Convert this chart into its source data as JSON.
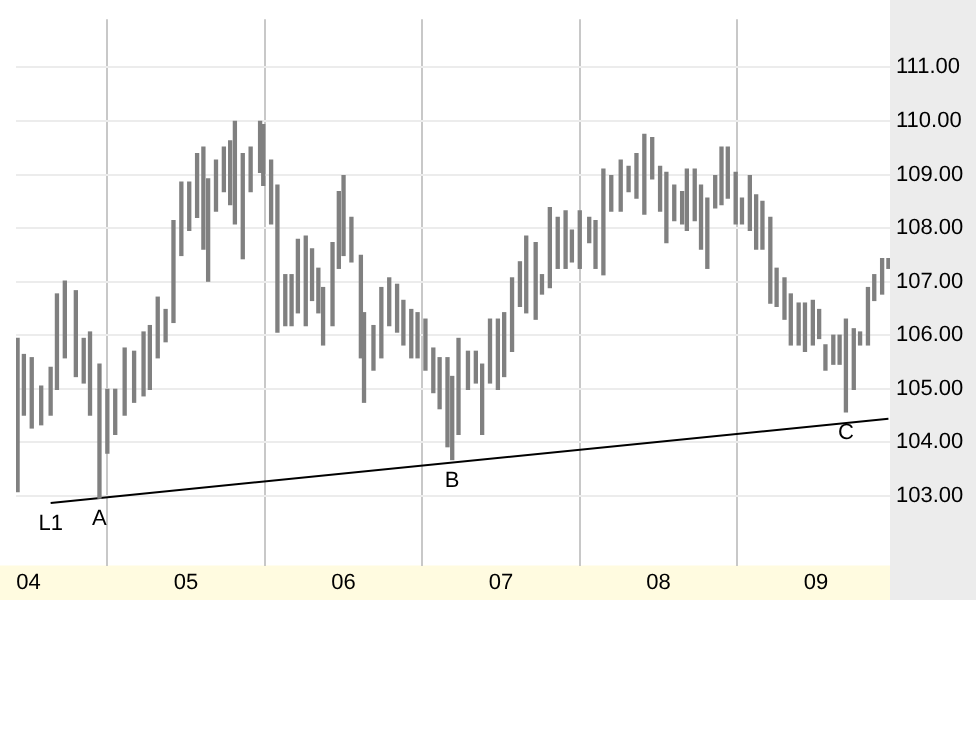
{
  "chart_data": {
    "type": "bar",
    "xlim": [
      3.92,
      9.47
    ],
    "xticks": [
      {
        "value": 4,
        "label": "04"
      },
      {
        "value": 5,
        "label": "05"
      },
      {
        "value": 6,
        "label": "06"
      },
      {
        "value": 7,
        "label": "07"
      },
      {
        "value": 8,
        "label": "08"
      },
      {
        "value": 9,
        "label": "09"
      }
    ],
    "ylim": [
      101.7,
      111.9
    ],
    "yticks": [
      {
        "value": 103,
        "label": "103.00"
      },
      {
        "value": 104,
        "label": "104.00"
      },
      {
        "value": 105,
        "label": "105.00"
      },
      {
        "value": 106,
        "label": "106.00"
      },
      {
        "value": 107,
        "label": "107.00"
      },
      {
        "value": 108,
        "label": "108.00"
      },
      {
        "value": 109,
        "label": "109.00"
      },
      {
        "value": 110,
        "label": "110.00"
      },
      {
        "value": 111,
        "label": "111.00"
      }
    ],
    "grid": true,
    "annotations": [
      {
        "text": "L1",
        "x": 4.14,
        "y": 102.87
      },
      {
        "text": "A",
        "x": 4.45,
        "y": 102.96
      },
      {
        "text": "B",
        "x": 6.69,
        "y": 103.68
      },
      {
        "text": "C",
        "x": 9.19,
        "y": 104.57
      }
    ],
    "series": [
      {
        "color": "#808080",
        "x": [
          3.93,
          3.97,
          4.02,
          4.08,
          4.14,
          4.18,
          4.23,
          4.3,
          4.35,
          4.39,
          4.45,
          4.5,
          4.55,
          4.61,
          4.67,
          4.73,
          4.77,
          4.82,
          4.87,
          4.92,
          4.97,
          5.02,
          5.07,
          5.11,
          5.14,
          5.19,
          5.24,
          5.28,
          5.31,
          5.36,
          5.41,
          5.47,
          5.49,
          5.54,
          5.58,
          5.63,
          5.67,
          5.71,
          5.76,
          5.8,
          5.84,
          5.87,
          5.93,
          5.97,
          6.0,
          6.05,
          6.11,
          6.13,
          6.19,
          6.24,
          6.29,
          6.34,
          6.38,
          6.43,
          6.47,
          6.52,
          6.57,
          6.61,
          6.66,
          6.69,
          6.73,
          6.79,
          6.84,
          6.88,
          6.93,
          6.98,
          7.02,
          7.07,
          7.12,
          7.16,
          7.22,
          7.26,
          7.31,
          7.36,
          7.41,
          7.45,
          7.5,
          7.56,
          7.6,
          7.65,
          7.7,
          7.76,
          7.81,
          7.86,
          7.91,
          7.96,
          8.01,
          8.05,
          8.1,
          8.15,
          8.18,
          8.23,
          8.27,
          8.31,
          8.36,
          8.4,
          8.44,
          8.49,
          8.53,
          8.58,
          8.62,
          8.66,
          8.71,
          8.75,
          8.8,
          8.84,
          8.89,
          8.93,
          8.98,
          9.02,
          9.06,
          9.11,
          9.15,
          9.19,
          9.24,
          9.28,
          9.33,
          9.37,
          9.42,
          9.46
        ],
        "base": [
          103.08,
          104.51,
          104.27,
          104.33,
          104.51,
          104.99,
          105.58,
          105.23,
          105.11,
          104.51,
          102.96,
          103.8,
          104.15,
          104.51,
          104.75,
          104.87,
          104.99,
          105.58,
          105.88,
          106.24,
          107.49,
          107.96,
          108.2,
          107.61,
          107.01,
          108.32,
          108.68,
          108.44,
          108.08,
          107.43,
          108.68,
          109.04,
          108.8,
          108.08,
          106.06,
          106.18,
          106.18,
          106.42,
          106.18,
          106.65,
          106.42,
          105.82,
          106.18,
          107.25,
          107.49,
          107.37,
          105.58,
          104.75,
          105.35,
          105.58,
          106.18,
          106.06,
          105.82,
          105.58,
          105.58,
          105.35,
          104.93,
          104.63,
          103.92,
          103.68,
          104.15,
          104.99,
          105.11,
          104.15,
          105.11,
          104.99,
          105.23,
          105.7,
          106.54,
          106.42,
          106.3,
          106.77,
          106.89,
          107.25,
          107.25,
          107.37,
          107.25,
          107.73,
          107.25,
          107.13,
          108.32,
          108.32,
          108.68,
          108.56,
          108.26,
          108.92,
          108.32,
          107.73,
          108.14,
          108.08,
          107.96,
          108.14,
          107.61,
          107.25,
          108.38,
          108.44,
          108.56,
          108.08,
          108.08,
          107.96,
          107.61,
          107.61,
          106.6,
          106.54,
          106.3,
          105.82,
          105.82,
          105.7,
          105.82,
          105.94,
          105.35,
          105.46,
          105.46,
          104.57,
          104.99,
          105.82,
          105.82,
          106.65,
          106.77,
          107.25
        ],
        "values": [
          2.86,
          1.13,
          1.31,
          0.72,
          0.89,
          1.78,
          1.43,
          1.6,
          0.83,
          1.55,
          2.5,
          1.19,
          0.84,
          1.25,
          0.95,
          1.19,
          1.19,
          1.13,
          0.6,
          1.9,
          1.37,
          0.9,
          1.19,
          1.9,
          1.91,
          0.95,
          0.83,
          1.19,
          1.91,
          1.96,
          0.83,
          0.95,
          1.13,
          1.19,
          2.74,
          0.95,
          0.95,
          1.37,
          1.67,
          0.96,
          0.83,
          1.07,
          1.55,
          1.43,
          1.49,
          0.83,
          1.91,
          1.67,
          0.83,
          1.31,
          0.89,
          0.89,
          0.83,
          0.9,
          0.84,
          0.95,
          0.83,
          0.95,
          1.66,
          1.55,
          1.79,
          0.71,
          0.59,
          1.31,
          1.19,
          1.31,
          1.19,
          1.37,
          0.83,
          1.43,
          1.43,
          0.36,
          1.49,
          0.95,
          1.07,
          0.59,
          1.07,
          0.47,
          0.89,
          1.97,
          0.66,
          0.95,
          0.47,
          0.83,
          1.49,
          0.77,
          0.83,
          1.31,
          0.66,
          0.6,
          1.14,
          0.96,
          1.19,
          1.31,
          0.6,
          1.07,
          0.95,
          0.96,
          0.48,
          1.02,
          1.01,
          0.89,
          1.6,
          0.71,
          0.77,
          0.95,
          0.78,
          0.9,
          0.83,
          0.54,
          0.47,
          0.54,
          0.54,
          1.73,
          1.13,
          0.24,
          1.07,
          0.48,
          0.66,
          0.18
        ]
      },
      {
        "type": "line",
        "color": "#000000",
        "x": [
          4.14,
          9.46
        ],
        "values": [
          102.87,
          104.44
        ]
      }
    ]
  }
}
